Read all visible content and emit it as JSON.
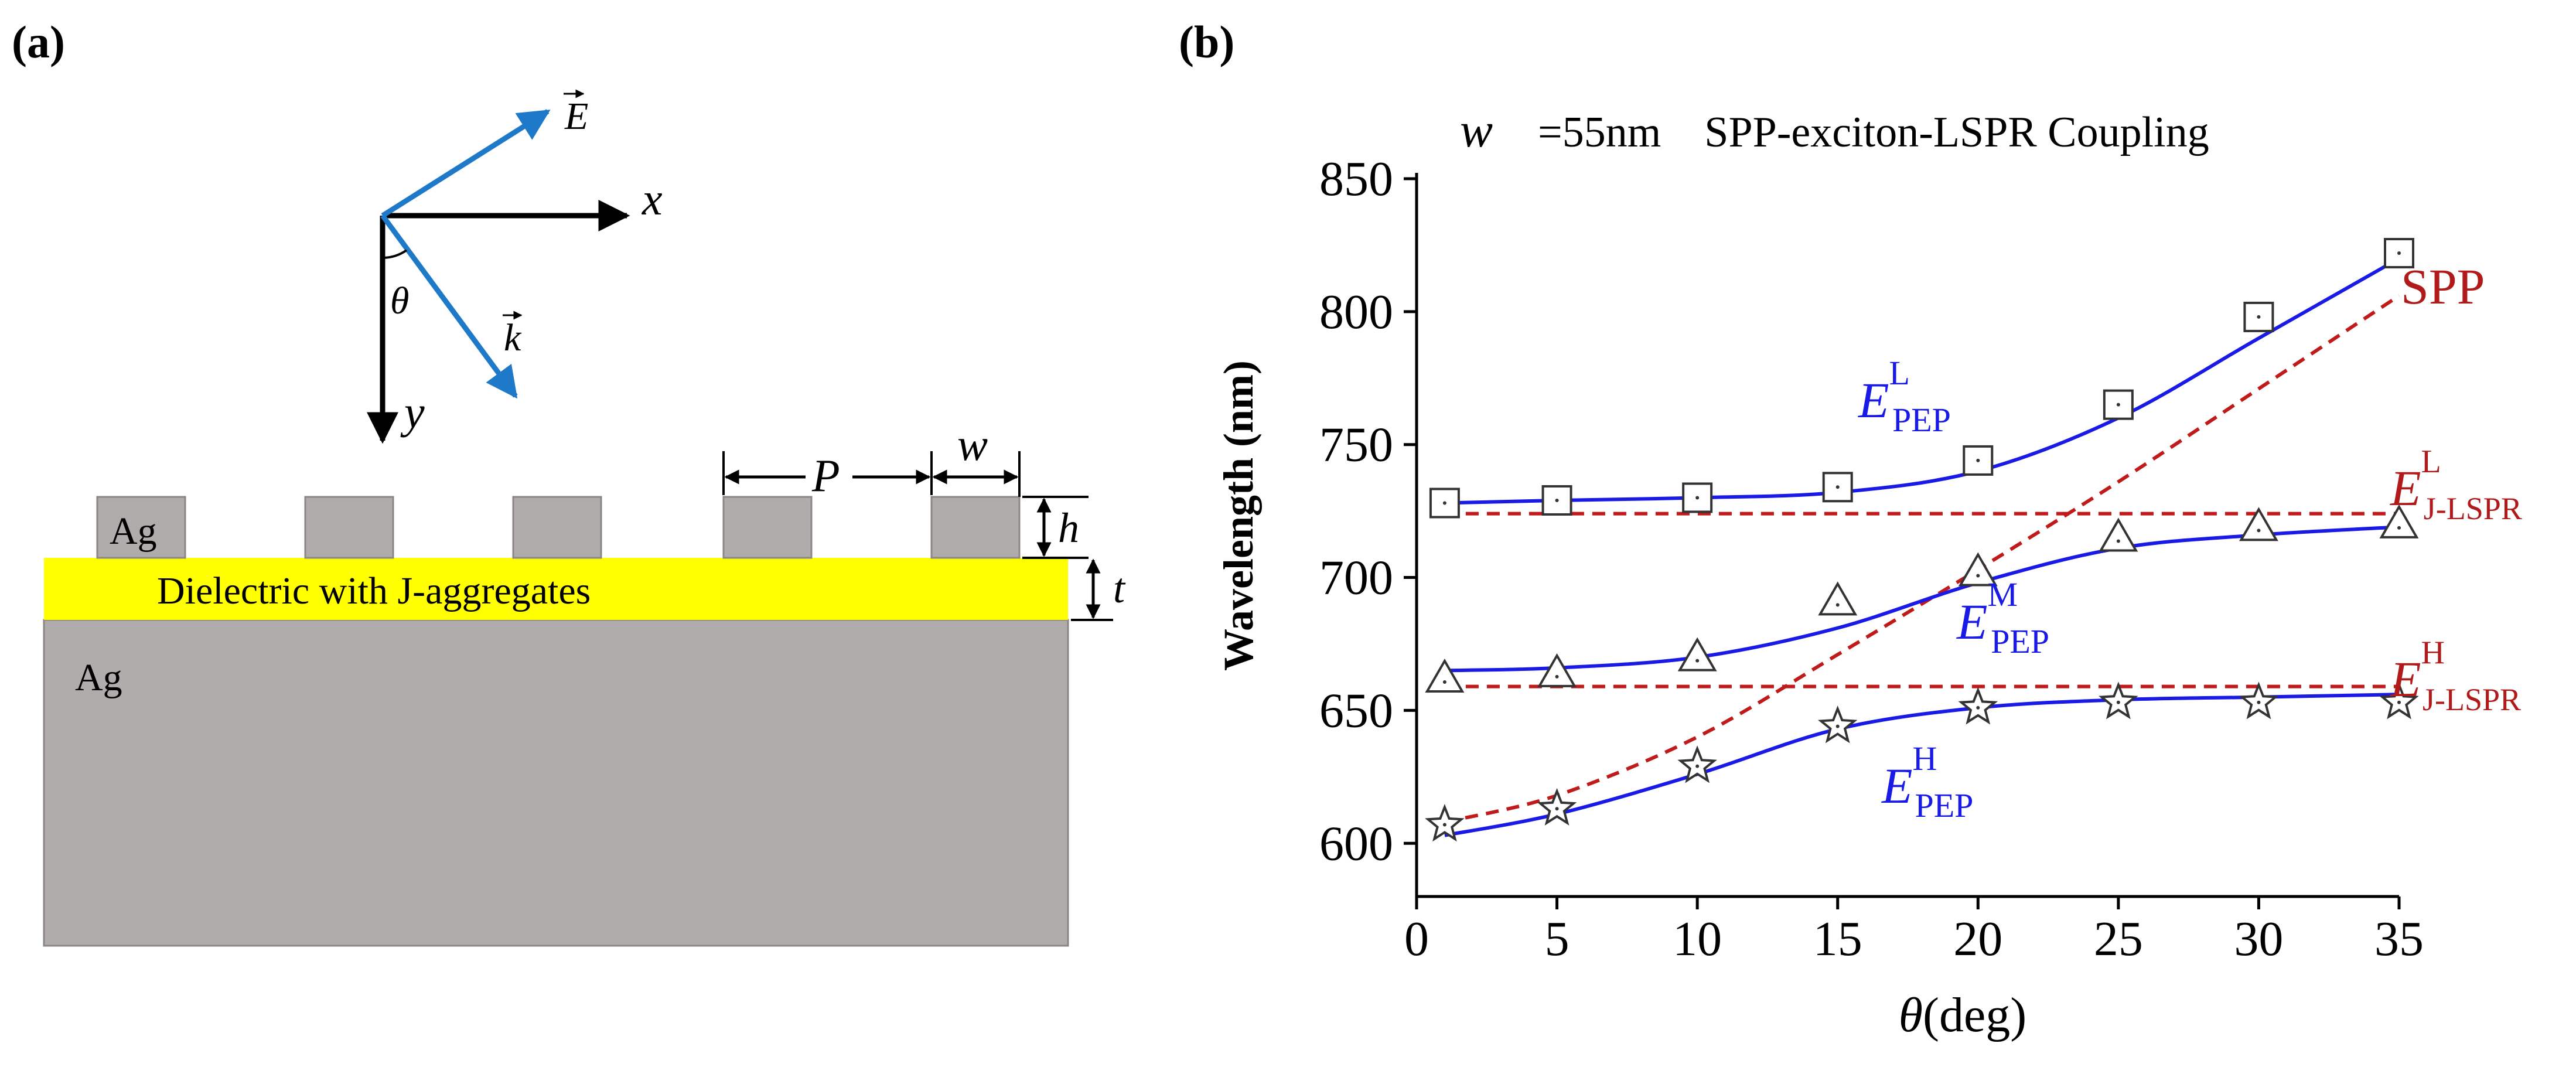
{
  "panel_a": {
    "label": "(a)",
    "axis_x": "x",
    "axis_y": "y",
    "angle": "θ",
    "field_E": "E",
    "wave_k": "k",
    "dim_P": "P",
    "dim_w": "w",
    "dim_h": "h",
    "dim_t": "t",
    "ag_top": "Ag",
    "ag_bottom": "Ag",
    "dielectric": "Dielectric with J-aggregates",
    "colors": {
      "ag": "#b0acac",
      "dielectric": "#ffff00",
      "arrow_blue": "#1e7ac8"
    }
  },
  "panel_b": {
    "label": "(b)",
    "header_w": "w",
    "header_rest": "=55nm    SPP-exciton-LSPR Coupling"
  },
  "chart_data": {
    "type": "line",
    "title": "w =55nm    SPP-exciton-LSPR Coupling",
    "xlabel_symbol": "θ",
    "xlabel_unit": "(deg)",
    "ylabel": "Wavelength  (nm)",
    "xlim": [
      0,
      35
    ],
    "ylim": [
      580,
      850
    ],
    "xticks": [
      0,
      5,
      10,
      15,
      20,
      25,
      30,
      35
    ],
    "yticks": [
      600,
      650,
      700,
      750,
      800,
      850
    ],
    "markers": [
      {
        "name": "E_PEP^L",
        "symbol": "square",
        "x": [
          1,
          5,
          10,
          15,
          20,
          25,
          30,
          35
        ],
        "y": [
          728,
          729,
          730,
          734,
          744,
          765,
          798,
          822
        ]
      },
      {
        "name": "E_PEP^M",
        "symbol": "triangle",
        "x": [
          1,
          5,
          10,
          15,
          20,
          25,
          30,
          35
        ],
        "y": [
          662,
          664,
          670,
          691,
          702,
          715,
          719,
          720
        ]
      },
      {
        "name": "E_PEP^H",
        "symbol": "star",
        "x": [
          1,
          5,
          10,
          15,
          20,
          25,
          30,
          35
        ],
        "y": [
          607,
          613,
          629,
          644,
          651,
          653,
          653,
          653
        ]
      }
    ],
    "fitted_curves": [
      {
        "name": "E_PEP^L fit",
        "style": "solid",
        "color": "#1a1ae6",
        "x": [
          1,
          5,
          10,
          15,
          20,
          25,
          30,
          35
        ],
        "y": [
          728,
          729,
          730,
          732,
          740,
          760,
          790,
          820
        ]
      },
      {
        "name": "E_PEP^M fit",
        "style": "solid",
        "color": "#1a1ae6",
        "x": [
          1,
          5,
          10,
          15,
          20,
          25,
          30,
          35
        ],
        "y": [
          665,
          666,
          670,
          681,
          698,
          711,
          716,
          719
        ]
      },
      {
        "name": "E_PEP^H fit",
        "style": "solid",
        "color": "#1a1ae6",
        "x": [
          1,
          5,
          10,
          15,
          20,
          25,
          30,
          35
        ],
        "y": [
          603,
          611,
          626,
          643,
          651,
          654,
          655,
          656
        ]
      }
    ],
    "bare_modes": [
      {
        "name": "SPP",
        "style": "dashed",
        "color": "#c01a1a",
        "x": [
          1,
          5,
          10,
          15,
          20,
          25,
          30,
          35
        ],
        "y": [
          608,
          618,
          640,
          671,
          703,
          736,
          771,
          806
        ]
      },
      {
        "name": "E_J-LSPR^L",
        "style": "dashed",
        "color": "#c01a1a",
        "x": [
          1,
          35
        ],
        "y": [
          724,
          724
        ]
      },
      {
        "name": "E_J-LSPR^H",
        "style": "dashed",
        "color": "#c01a1a",
        "x": [
          1,
          35
        ],
        "y": [
          659,
          659
        ]
      }
    ],
    "labels": {
      "E": "E",
      "sup_L": "L",
      "sup_M": "M",
      "sup_H": "H",
      "sub_pep": "PEP",
      "sub_jlspr": "J-LSPR",
      "spp": "SPP"
    }
  }
}
